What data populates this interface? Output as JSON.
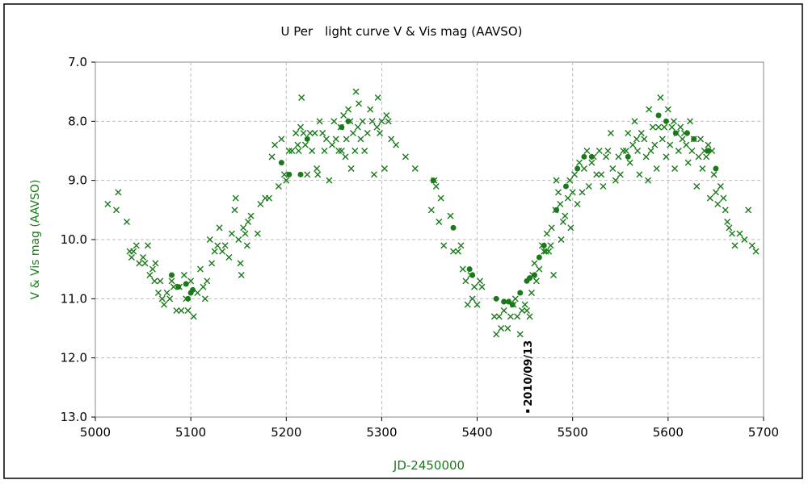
{
  "chart_data": {
    "type": "scatter",
    "title": "U Per　light curve  V & Vis mag (AAVSO)",
    "xlabel": "JD-2450000",
    "ylabel": "V & Vis mag (AAVSO)",
    "xlim": [
      5000,
      5700
    ],
    "ylim": [
      13.0,
      7.0
    ],
    "y_inverted": true,
    "grid": true,
    "x_ticks": [
      "5000",
      "5100",
      "5200",
      "5300",
      "5400",
      "5500",
      "5600",
      "5700"
    ],
    "y_ticks": [
      "7.0",
      "8.0",
      "9.0",
      "10.0",
      "11.0",
      "12.0",
      "13.0"
    ],
    "marker_color": "#1a7a1a",
    "annotation": {
      "label": "2010/09/13",
      "x": 5453,
      "y": 12.9
    },
    "series": [
      {
        "marker": "x",
        "points": [
          [
            5013,
            9.4
          ],
          [
            5022,
            9.5
          ],
          [
            5024,
            9.2
          ],
          [
            5033,
            9.7
          ],
          [
            5036,
            10.2
          ],
          [
            5038,
            10.3
          ],
          [
            5040,
            10.2
          ],
          [
            5043,
            10.1
          ],
          [
            5046,
            10.4
          ],
          [
            5050,
            10.3
          ],
          [
            5052,
            10.4
          ],
          [
            5055,
            10.1
          ],
          [
            5057,
            10.6
          ],
          [
            5060,
            10.5
          ],
          [
            5062,
            10.7
          ],
          [
            5063,
            10.4
          ],
          [
            5066,
            10.9
          ],
          [
            5068,
            10.7
          ],
          [
            5070,
            11.0
          ],
          [
            5072,
            11.1
          ],
          [
            5075,
            10.9
          ],
          [
            5078,
            11.0
          ],
          [
            5080,
            10.7
          ],
          [
            5082,
            10.8
          ],
          [
            5085,
            11.2
          ],
          [
            5088,
            10.8
          ],
          [
            5090,
            11.2
          ],
          [
            5093,
            10.6
          ],
          [
            5095,
            11.0
          ],
          [
            5097,
            11.2
          ],
          [
            5100,
            10.7
          ],
          [
            5103,
            11.3
          ],
          [
            5107,
            10.9
          ],
          [
            5110,
            10.5
          ],
          [
            5113,
            10.8
          ],
          [
            5115,
            11.0
          ],
          [
            5117,
            10.7
          ],
          [
            5120,
            10.0
          ],
          [
            5122,
            10.4
          ],
          [
            5125,
            10.2
          ],
          [
            5128,
            10.1
          ],
          [
            5130,
            9.8
          ],
          [
            5133,
            10.2
          ],
          [
            5136,
            10.1
          ],
          [
            5140,
            10.3
          ],
          [
            5143,
            9.9
          ],
          [
            5146,
            9.5
          ],
          [
            5147,
            9.3
          ],
          [
            5150,
            10.0
          ],
          [
            5152,
            10.4
          ],
          [
            5153,
            10.6
          ],
          [
            5155,
            9.8
          ],
          [
            5157,
            9.9
          ],
          [
            5159,
            10.1
          ],
          [
            5160,
            9.7
          ],
          [
            5163,
            9.6
          ],
          [
            5170,
            9.9
          ],
          [
            5173,
            9.4
          ],
          [
            5178,
            9.3
          ],
          [
            5182,
            9.3
          ],
          [
            5185,
            8.6
          ],
          [
            5188,
            8.4
          ],
          [
            5192,
            9.1
          ],
          [
            5195,
            8.3
          ],
          [
            5198,
            8.9
          ],
          [
            5200,
            9.0
          ],
          [
            5203,
            8.5
          ],
          [
            5206,
            8.5
          ],
          [
            5210,
            8.2
          ],
          [
            5212,
            8.4
          ],
          [
            5213,
            8.5
          ],
          [
            5215,
            8.1
          ],
          [
            5216,
            7.6
          ],
          [
            5218,
            8.2
          ],
          [
            5220,
            8.4
          ],
          [
            5222,
            8.9
          ],
          [
            5225,
            8.2
          ],
          [
            5227,
            8.5
          ],
          [
            5230,
            8.2
          ],
          [
            5232,
            8.8
          ],
          [
            5233,
            8.9
          ],
          [
            5235,
            8.0
          ],
          [
            5238,
            8.2
          ],
          [
            5240,
            8.5
          ],
          [
            5242,
            8.3
          ],
          [
            5245,
            9.0
          ],
          [
            5248,
            8.4
          ],
          [
            5250,
            8.0
          ],
          [
            5252,
            8.3
          ],
          [
            5255,
            8.5
          ],
          [
            5257,
            8.1
          ],
          [
            5258,
            8.5
          ],
          [
            5260,
            7.9
          ],
          [
            5262,
            8.6
          ],
          [
            5263,
            8.3
          ],
          [
            5265,
            7.8
          ],
          [
            5267,
            8.0
          ],
          [
            5268,
            8.8
          ],
          [
            5270,
            8.2
          ],
          [
            5272,
            8.5
          ],
          [
            5273,
            7.5
          ],
          [
            5275,
            8.1
          ],
          [
            5276,
            7.7
          ],
          [
            5278,
            8.3
          ],
          [
            5280,
            8.0
          ],
          [
            5282,
            8.5
          ],
          [
            5285,
            8.2
          ],
          [
            5288,
            7.8
          ],
          [
            5290,
            8.0
          ],
          [
            5292,
            8.9
          ],
          [
            5295,
            8.1
          ],
          [
            5296,
            7.6
          ],
          [
            5298,
            8.2
          ],
          [
            5300,
            8.0
          ],
          [
            5303,
            8.8
          ],
          [
            5305,
            7.9
          ],
          [
            5307,
            8.0
          ],
          [
            5310,
            8.3
          ],
          [
            5315,
            8.4
          ],
          [
            5325,
            8.6
          ],
          [
            5335,
            8.8
          ],
          [
            5352,
            9.5
          ],
          [
            5355,
            9.0
          ],
          [
            5357,
            9.1
          ],
          [
            5360,
            9.7
          ],
          [
            5362,
            9.3
          ],
          [
            5365,
            10.1
          ],
          [
            5372,
            9.6
          ],
          [
            5375,
            10.2
          ],
          [
            5380,
            10.2
          ],
          [
            5383,
            10.1
          ],
          [
            5385,
            10.5
          ],
          [
            5388,
            10.7
          ],
          [
            5390,
            11.1
          ],
          [
            5393,
            10.6
          ],
          [
            5395,
            11.0
          ],
          [
            5397,
            10.8
          ],
          [
            5400,
            11.1
          ],
          [
            5403,
            10.7
          ],
          [
            5405,
            10.8
          ],
          [
            5418,
            11.3
          ],
          [
            5420,
            11.6
          ],
          [
            5423,
            11.3
          ],
          [
            5425,
            11.5
          ],
          [
            5428,
            11.2
          ],
          [
            5432,
            11.5
          ],
          [
            5435,
            11.3
          ],
          [
            5438,
            11.1
          ],
          [
            5440,
            11.0
          ],
          [
            5442,
            11.3
          ],
          [
            5445,
            11.6
          ],
          [
            5447,
            11.2
          ],
          [
            5450,
            11.1
          ],
          [
            5452,
            11.2
          ],
          [
            5455,
            11.3
          ],
          [
            5457,
            10.9
          ],
          [
            5458,
            10.6
          ],
          [
            5460,
            10.4
          ],
          [
            5462,
            10.7
          ],
          [
            5465,
            10.5
          ],
          [
            5468,
            10.1
          ],
          [
            5470,
            10.2
          ],
          [
            5472,
            10.2
          ],
          [
            5473,
            9.9
          ],
          [
            5475,
            10.2
          ],
          [
            5477,
            10.1
          ],
          [
            5478,
            9.8
          ],
          [
            5480,
            10.6
          ],
          [
            5482,
            9.5
          ],
          [
            5483,
            9.0
          ],
          [
            5485,
            9.2
          ],
          [
            5487,
            9.4
          ],
          [
            5488,
            10.0
          ],
          [
            5490,
            9.7
          ],
          [
            5492,
            9.6
          ],
          [
            5495,
            9.3
          ],
          [
            5497,
            9.0
          ],
          [
            5498,
            9.8
          ],
          [
            5500,
            9.2
          ],
          [
            5502,
            8.9
          ],
          [
            5505,
            9.4
          ],
          [
            5507,
            8.7
          ],
          [
            5510,
            9.2
          ],
          [
            5512,
            8.8
          ],
          [
            5515,
            8.5
          ],
          [
            5517,
            9.1
          ],
          [
            5520,
            8.7
          ],
          [
            5522,
            8.6
          ],
          [
            5525,
            8.9
          ],
          [
            5528,
            8.5
          ],
          [
            5530,
            8.9
          ],
          [
            5532,
            9.1
          ],
          [
            5535,
            8.6
          ],
          [
            5537,
            8.5
          ],
          [
            5540,
            8.2
          ],
          [
            5542,
            8.8
          ],
          [
            5545,
            9.0
          ],
          [
            5548,
            8.6
          ],
          [
            5550,
            8.9
          ],
          [
            5553,
            8.5
          ],
          [
            5556,
            8.5
          ],
          [
            5558,
            8.2
          ],
          [
            5560,
            8.7
          ],
          [
            5563,
            8.4
          ],
          [
            5565,
            8.0
          ],
          [
            5567,
            8.3
          ],
          [
            5568,
            8.5
          ],
          [
            5570,
            8.9
          ],
          [
            5572,
            8.2
          ],
          [
            5575,
            8.3
          ],
          [
            5577,
            8.6
          ],
          [
            5579,
            9.0
          ],
          [
            5580,
            7.8
          ],
          [
            5582,
            8.5
          ],
          [
            5584,
            8.1
          ],
          [
            5586,
            8.4
          ],
          [
            5588,
            8.8
          ],
          [
            5590,
            8.1
          ],
          [
            5592,
            7.6
          ],
          [
            5594,
            8.3
          ],
          [
            5596,
            8.1
          ],
          [
            5598,
            8.6
          ],
          [
            5600,
            7.8
          ],
          [
            5602,
            8.4
          ],
          [
            5604,
            8.1
          ],
          [
            5606,
            8.0
          ],
          [
            5607,
            8.8
          ],
          [
            5609,
            8.2
          ],
          [
            5611,
            8.5
          ],
          [
            5613,
            8.1
          ],
          [
            5615,
            8.3
          ],
          [
            5617,
            8.2
          ],
          [
            5619,
            8.4
          ],
          [
            5621,
            8.7
          ],
          [
            5623,
            8.0
          ],
          [
            5625,
            8.5
          ],
          [
            5627,
            8.3
          ],
          [
            5630,
            9.1
          ],
          [
            5632,
            8.6
          ],
          [
            5634,
            8.3
          ],
          [
            5636,
            8.8
          ],
          [
            5638,
            8.5
          ],
          [
            5640,
            8.6
          ],
          [
            5642,
            8.4
          ],
          [
            5644,
            9.3
          ],
          [
            5646,
            8.5
          ],
          [
            5648,
            8.9
          ],
          [
            5650,
            9.2
          ],
          [
            5652,
            9.4
          ],
          [
            5655,
            9.1
          ],
          [
            5658,
            9.3
          ],
          [
            5660,
            9.5
          ],
          [
            5662,
            9.7
          ],
          [
            5664,
            9.8
          ],
          [
            5667,
            9.9
          ],
          [
            5670,
            10.1
          ],
          [
            5675,
            9.9
          ],
          [
            5680,
            10.0
          ],
          [
            5684,
            9.5
          ],
          [
            5688,
            10.1
          ],
          [
            5692,
            10.2
          ]
        ]
      },
      {
        "marker": "circle",
        "points": [
          [
            5080,
            10.6
          ],
          [
            5087,
            10.8
          ],
          [
            5095,
            10.75
          ],
          [
            5100,
            10.9
          ],
          [
            5102,
            10.85
          ],
          [
            5097,
            11.0
          ],
          [
            5195,
            8.7
          ],
          [
            5203,
            8.9
          ],
          [
            5215,
            8.9
          ],
          [
            5222,
            8.3
          ],
          [
            5258,
            8.1
          ],
          [
            5265,
            8.0
          ],
          [
            5354,
            9.0
          ],
          [
            5375,
            9.8
          ],
          [
            5392,
            10.5
          ],
          [
            5395,
            10.6
          ],
          [
            5420,
            11.0
          ],
          [
            5428,
            11.05
          ],
          [
            5433,
            11.05
          ],
          [
            5437,
            11.1
          ],
          [
            5445,
            10.9
          ],
          [
            5452,
            10.7
          ],
          [
            5455,
            10.65
          ],
          [
            5460,
            10.6
          ],
          [
            5465,
            10.3
          ],
          [
            5470,
            10.1
          ],
          [
            5483,
            9.5
          ],
          [
            5493,
            9.1
          ],
          [
            5505,
            8.8
          ],
          [
            5512,
            8.6
          ],
          [
            5520,
            8.6
          ],
          [
            5558,
            8.6
          ],
          [
            5590,
            7.9
          ],
          [
            5598,
            8.0
          ],
          [
            5608,
            8.2
          ],
          [
            5620,
            8.2
          ],
          [
            5627,
            8.3
          ],
          [
            5642,
            8.5
          ],
          [
            5650,
            8.8
          ]
        ]
      }
    ]
  }
}
